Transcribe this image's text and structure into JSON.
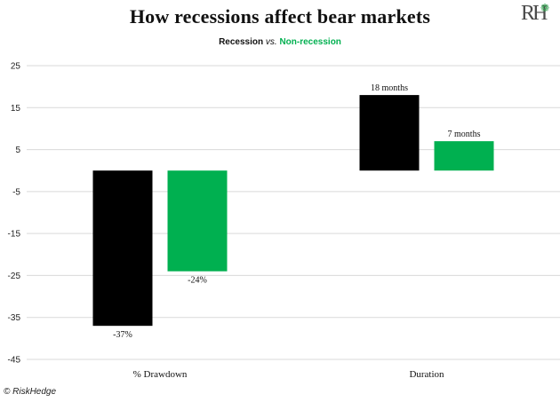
{
  "header": {
    "title": "How recessions affect bear markets",
    "subtitle_a": "Recession",
    "subtitle_vs": "vs.",
    "subtitle_b": "Non-recession",
    "logo_text": "RH"
  },
  "footer": {
    "copyright": "© RiskHedge"
  },
  "colors": {
    "recession": "#000000",
    "non_recession": "#00b050",
    "grid": "#d9d9d9"
  },
  "chart_data": {
    "type": "bar",
    "categories": [
      "% Drawdown",
      "Duration"
    ],
    "series": [
      {
        "values": [
          -37,
          18
        ],
        "labels": [
          "-37%",
          "18 months"
        ]
      },
      {
        "values": [
          -24,
          7
        ],
        "labels": [
          "-24%",
          "7 months"
        ]
      }
    ],
    "ylim": [
      -45,
      25
    ],
    "yticks": [
      25,
      15,
      5,
      -5,
      -15,
      -25,
      -35,
      -45
    ],
    "grid": true,
    "xlabel": "",
    "ylabel": ""
  }
}
